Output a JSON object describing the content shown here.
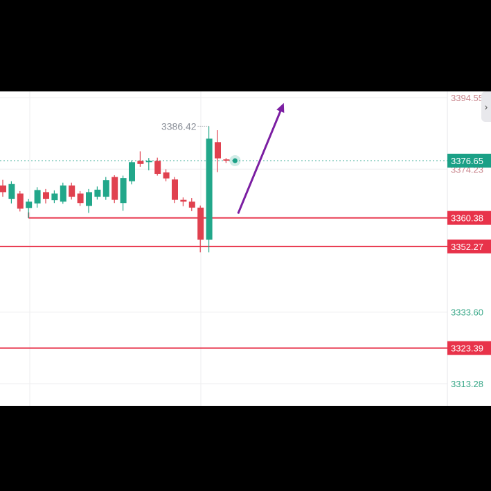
{
  "colors": {
    "up": "#22a78a",
    "down": "#e0414f",
    "level_line": "#e8334a",
    "current_price_tag": "#1aa086",
    "arrow": "#7b1ea2",
    "grid": "#eeeeef",
    "axis_text_muted": "#c9868d",
    "axis_text_green": "#3aa889",
    "annotation_text": "#8a8f98"
  },
  "side_toggle": {
    "icon": "chevron-right-icon",
    "glyph": "›"
  },
  "chart_data": {
    "type": "candlestick",
    "title": "",
    "xlabel": "",
    "ylabel": "",
    "ylim": [
      3308.7,
      3398.5
    ],
    "grid": true,
    "y_ticks": [
      "3394.55",
      "3374.23",
      "3333.60",
      "3313.28"
    ],
    "y_tick_values": [
      3394.55,
      3374.23,
      3333.6,
      3313.28
    ],
    "high_annotation": {
      "label": "3386.42",
      "value": 3386.42
    },
    "current_price": {
      "label": "3376.65",
      "value": 3376.65
    },
    "horizontal_levels": [
      {
        "label": "3360.38",
        "value": 3360.38
      },
      {
        "label": "3352.27",
        "value": 3352.27
      },
      {
        "label": "3323.39",
        "value": 3323.39
      }
    ],
    "arrow": {
      "from_index": 27.4,
      "from_value": 3361.6,
      "to_index": 32.6,
      "to_value": 3392.3
    },
    "candles": [
      {
        "i": 0,
        "open": 3369.6,
        "close": 3367.7,
        "high": 3371.2,
        "low": 3366.4
      },
      {
        "i": 1,
        "open": 3365.8,
        "close": 3370.0,
        "high": 3370.8,
        "low": 3364.5
      },
      {
        "i": 2,
        "open": 3367.3,
        "close": 3363.0,
        "high": 3368.0,
        "low": 3362.2
      },
      {
        "i": 3,
        "open": 3363.2,
        "close": 3365.0,
        "high": 3365.8,
        "low": 3360.3
      },
      {
        "i": 4,
        "open": 3364.5,
        "close": 3368.3,
        "high": 3369.1,
        "low": 3363.3
      },
      {
        "i": 5,
        "open": 3367.7,
        "close": 3365.8,
        "high": 3368.6,
        "low": 3364.5
      },
      {
        "i": 6,
        "open": 3365.4,
        "close": 3367.3,
        "high": 3368.2,
        "low": 3364.6
      },
      {
        "i": 7,
        "open": 3365.0,
        "close": 3369.6,
        "high": 3370.4,
        "low": 3364.4
      },
      {
        "i": 8,
        "open": 3369.6,
        "close": 3366.4,
        "high": 3370.4,
        "low": 3365.6
      },
      {
        "i": 9,
        "open": 3367.3,
        "close": 3364.6,
        "high": 3368.0,
        "low": 3363.8
      },
      {
        "i": 10,
        "open": 3363.8,
        "close": 3367.7,
        "high": 3368.6,
        "low": 3361.8
      },
      {
        "i": 11,
        "open": 3366.4,
        "close": 3368.4,
        "high": 3369.3,
        "low": 3365.6
      },
      {
        "i": 12,
        "open": 3366.4,
        "close": 3371.1,
        "high": 3372.0,
        "low": 3365.5
      },
      {
        "i": 13,
        "open": 3372.0,
        "close": 3365.5,
        "high": 3372.5,
        "low": 3364.6
      },
      {
        "i": 14,
        "open": 3364.6,
        "close": 3371.7,
        "high": 3372.4,
        "low": 3362.4
      },
      {
        "i": 15,
        "open": 3370.8,
        "close": 3376.2,
        "high": 3376.7,
        "low": 3369.9
      },
      {
        "i": 16,
        "open": 3376.6,
        "close": 3375.7,
        "high": 3379.3,
        "low": 3374.9
      },
      {
        "i": 17,
        "open": 3376.2,
        "close": 3376.6,
        "high": 3377.4,
        "low": 3373.9
      },
      {
        "i": 18,
        "open": 3376.6,
        "close": 3372.9,
        "high": 3377.5,
        "low": 3372.4
      },
      {
        "i": 19,
        "open": 3373.3,
        "close": 3371.6,
        "high": 3374.2,
        "low": 3370.8
      },
      {
        "i": 20,
        "open": 3371.3,
        "close": 3365.5,
        "high": 3372.0,
        "low": 3364.6
      },
      {
        "i": 21,
        "open": 3365.5,
        "close": 3365.0,
        "high": 3366.2,
        "low": 3363.7
      },
      {
        "i": 22,
        "open": 3365.0,
        "close": 3363.3,
        "high": 3366.0,
        "low": 3362.3
      },
      {
        "i": 23,
        "open": 3363.3,
        "close": 3354.2,
        "high": 3363.9,
        "low": 3350.6
      },
      {
        "i": 24,
        "open": 3354.2,
        "close": 3382.9,
        "high": 3386.4,
        "low": 3350.6
      },
      {
        "i": 25,
        "open": 3381.9,
        "close": 3377.3,
        "high": 3385.3,
        "low": 3373.4
      },
      {
        "i": 26,
        "open": 3377.0,
        "close": 3376.65,
        "high": 3377.4,
        "low": 3376.0
      }
    ]
  }
}
